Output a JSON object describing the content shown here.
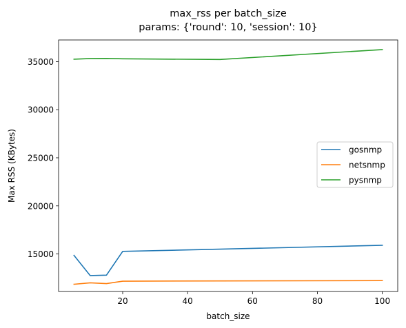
{
  "chart_data": {
    "type": "line",
    "title": "max_rss per batch_size",
    "subtitle": "params: {'round': 10, 'session': 10}",
    "xlabel": "batch_size",
    "ylabel": "Max RSS (KBytes)",
    "xlim": [
      0.25,
      104.75
    ],
    "ylim": [
      11100,
      37250
    ],
    "xticks": [
      20,
      40,
      60,
      80,
      100
    ],
    "yticks": [
      15000,
      20000,
      25000,
      30000,
      35000
    ],
    "grid": false,
    "legend_position": "center-right",
    "x": [
      5,
      10,
      15,
      20,
      50,
      100
    ],
    "series": [
      {
        "name": "gosnmp",
        "color": "#1f77b4",
        "values": [
          14850,
          12750,
          12800,
          15270,
          15500,
          15900
        ]
      },
      {
        "name": "netsnmp",
        "color": "#ff7f0e",
        "values": [
          11850,
          12000,
          11920,
          12170,
          12200,
          12230
        ]
      },
      {
        "name": "pysnmp",
        "color": "#2ca02c",
        "values": [
          35250,
          35320,
          35330,
          35290,
          35220,
          36250
        ]
      }
    ]
  }
}
